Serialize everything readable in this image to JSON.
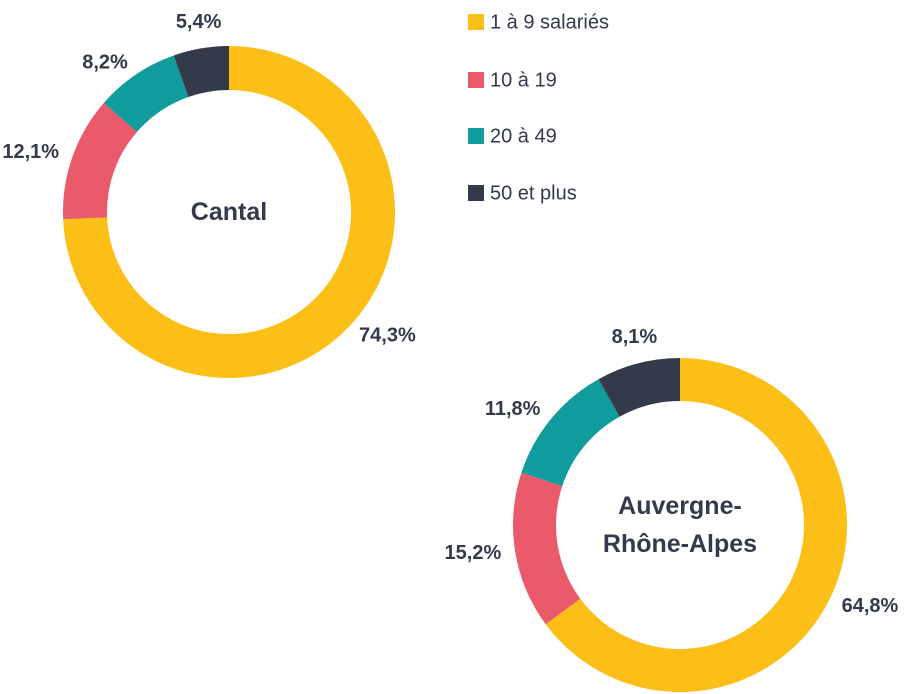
{
  "legend": {
    "labels": [
      "1 à 9 salariés",
      "10 à 19",
      "20 à 49",
      "50  et plus"
    ],
    "colors": [
      "#fbbf17",
      "#eb5a6a",
      "#109c9c",
      "#343a4a"
    ]
  },
  "chart_data": [
    {
      "type": "donut",
      "title": "Cantal",
      "values": [
        74.3,
        12.1,
        8.2,
        5.4
      ],
      "value_labels": [
        "74,3%",
        "12,1%",
        "8,2%",
        "5,4%"
      ]
    },
    {
      "type": "donut",
      "title": "Auvergne-Rhône-Alpes",
      "values": [
        64.8,
        15.2,
        11.8,
        8.1
      ],
      "value_labels": [
        "64,8%",
        "15,2%",
        "11,8%",
        "8,1%"
      ]
    }
  ]
}
